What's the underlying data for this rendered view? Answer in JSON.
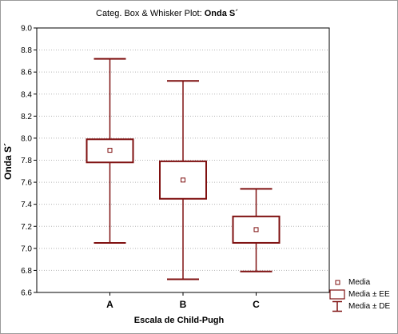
{
  "chart_data": {
    "type": "box",
    "title_prefix": "Categ. Box & Whisker Plot: ",
    "title_bold": "Onda S´",
    "xlabel": "Escala de Child-Pugh",
    "ylabel": "Onda S´",
    "ylim": [
      6.6,
      9.0
    ],
    "yticks": [
      "9.0",
      "8.8",
      "8.6",
      "8.4",
      "8.2",
      "8.0",
      "7.8",
      "7.6",
      "7.4",
      "7.2",
      "7.0",
      "6.8",
      "6.6"
    ],
    "grid": true,
    "categories": [
      "A",
      "B",
      "C"
    ],
    "groups": [
      {
        "category": "A",
        "mean": 7.89,
        "se_low": 7.78,
        "se_high": 7.99,
        "sd_low": 7.05,
        "sd_high": 8.72
      },
      {
        "category": "B",
        "mean": 7.62,
        "se_low": 7.45,
        "se_high": 7.79,
        "sd_low": 6.72,
        "sd_high": 8.52
      },
      {
        "category": "C",
        "mean": 7.17,
        "se_low": 7.05,
        "se_high": 7.29,
        "sd_low": 6.79,
        "sd_high": 7.54
      }
    ],
    "legend": {
      "position": "bottom-right",
      "entries": [
        "Media",
        "Media ± EE",
        "Media ± DE"
      ]
    },
    "color": "#7f1010"
  }
}
